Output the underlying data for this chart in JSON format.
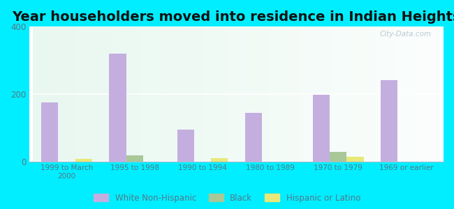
{
  "title": "Year householders moved into residence in Indian Heights",
  "categories": [
    "1999 to March\n2000",
    "1995 to 1998",
    "1990 to 1994",
    "1980 to 1989",
    "1970 to 1979",
    "1969 or earlier"
  ],
  "white_non_hispanic": [
    175,
    320,
    95,
    145,
    197,
    242
  ],
  "black": [
    0,
    18,
    0,
    0,
    27,
    0
  ],
  "hispanic_or_latino": [
    8,
    0,
    10,
    0,
    13,
    0
  ],
  "white_color": "#c4aee0",
  "black_color": "#a8c898",
  "hispanic_color": "#e8e878",
  "bg_color": "#00eeff",
  "plot_bg_topleft": "#c8e8c8",
  "plot_bg_topright": "#e8f0f8",
  "plot_bg_bottom": "#e8f0e8",
  "ylim": [
    0,
    400
  ],
  "yticks": [
    0,
    200,
    400
  ],
  "bar_width": 0.25,
  "title_fontsize": 14,
  "watermark": "City-Data.com"
}
